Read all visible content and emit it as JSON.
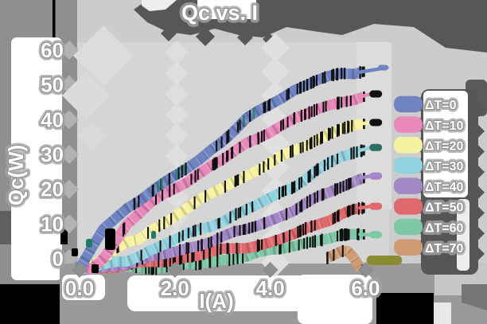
{
  "title": "Qc vs. I",
  "axes": {
    "xlabel": "I(A)",
    "ylabel": "Qc(W)",
    "x_ticks": [
      "0.0",
      "2.0",
      "4.0",
      "6.0"
    ],
    "x_tick_values": [
      0.0,
      2.0,
      4.0,
      6.0
    ],
    "y_ticks": [
      "0",
      "10",
      "20",
      "30",
      "40",
      "50",
      "60"
    ],
    "y_tick_values": [
      0,
      10,
      20,
      30,
      40,
      50,
      60
    ],
    "xlim": [
      0.0,
      6.5
    ],
    "ylim": [
      -1.5,
      62
    ]
  },
  "legend": {
    "position": "right",
    "entries": [
      {
        "label": "ΔT=0",
        "color": "#6f83c2"
      },
      {
        "label": "ΔT=10",
        "color": "#e888bb"
      },
      {
        "label": "ΔT=20",
        "color": "#f6f2a2"
      },
      {
        "label": "ΔT=30",
        "color": "#90d2e0"
      },
      {
        "label": "ΔT=40",
        "color": "#a387c6"
      },
      {
        "label": "ΔT=50",
        "color": "#df696d"
      },
      {
        "label": "ΔT=60",
        "color": "#7fc8a7"
      },
      {
        "label": "ΔT=70",
        "color": "#cf9b74"
      }
    ]
  },
  "colors": {
    "figure_bg": "#cccccc",
    "plot_bg": "#d5d5d5",
    "gray_medium": "#8f8f8f",
    "gray_dark": "#575757",
    "black": "#000000",
    "white": "#ffffff",
    "halo": "#9a9a9a",
    "olive_blob": "#8b8b33",
    "teal_blob": "#1f7a6b"
  },
  "chart_data": {
    "type": "line",
    "title": "Qc vs. I",
    "xlabel": "I(A)",
    "ylabel": "Qc(W)",
    "xlim": [
      0.0,
      6.5
    ],
    "ylim": [
      -1.5,
      62
    ],
    "grid": false,
    "legend_position": "right",
    "series": [
      {
        "name": "ΔT=0",
        "color": "#6f83c2",
        "cap_color": "#6f83c2",
        "cap_q": 55.2,
        "points": [
          [
            0.0,
            -2.8
          ],
          [
            0.25,
            3.0
          ],
          [
            0.5,
            8.56
          ],
          [
            0.75,
            11.57
          ],
          [
            1.0,
            14.51
          ],
          [
            1.25,
            16.61
          ],
          [
            1.5,
            19.2
          ],
          [
            1.75,
            21.82
          ],
          [
            2.0,
            23.91
          ],
          [
            2.25,
            25.97
          ],
          [
            2.5,
            28.38
          ],
          [
            2.75,
            31.18
          ],
          [
            3.0,
            33.7
          ],
          [
            3.25,
            36.84
          ],
          [
            3.5,
            40.41
          ],
          [
            3.75,
            42.65
          ],
          [
            4.0,
            44.33
          ],
          [
            4.25,
            46.22
          ],
          [
            4.5,
            48.43
          ],
          [
            4.75,
            49.87
          ],
          [
            5.0,
            51.48
          ],
          [
            5.25,
            52.67
          ],
          [
            5.5,
            53.31
          ],
          [
            5.75,
            53.14
          ],
          [
            5.95,
            53.8
          ]
        ]
      },
      {
        "name": "ΔT=10",
        "color": "#e888bb",
        "cap_color": "#111111",
        "cap_q": 47.4,
        "points": [
          [
            0.0,
            -2.0
          ],
          [
            0.25,
            -3.0
          ],
          [
            0.5,
            0.03
          ],
          [
            0.75,
            4.87
          ],
          [
            1.0,
            9.97
          ],
          [
            1.25,
            12.93
          ],
          [
            1.5,
            16.27
          ],
          [
            1.75,
            18.56
          ],
          [
            2.0,
            20.16
          ],
          [
            2.25,
            21.92
          ],
          [
            2.5,
            24.4
          ],
          [
            2.75,
            26.65
          ],
          [
            3.0,
            28.56
          ],
          [
            3.25,
            30.97
          ],
          [
            3.5,
            33.27
          ],
          [
            3.75,
            34.65
          ],
          [
            4.0,
            36.3
          ],
          [
            4.25,
            38.41
          ],
          [
            4.5,
            40.33
          ],
          [
            4.75,
            41.62
          ],
          [
            5.0,
            43.08
          ],
          [
            5.25,
            44.25
          ],
          [
            5.5,
            45.0
          ],
          [
            5.75,
            45.59
          ],
          [
            5.95,
            46.6
          ]
        ]
      },
      {
        "name": "ΔT=20",
        "color": "#f6f2a2",
        "cap_color": "#111111",
        "cap_q": 39.2,
        "points": [
          [
            0.0,
            -3.2
          ],
          [
            0.25,
            -1.83
          ],
          [
            0.5,
            -0.18
          ],
          [
            0.75,
            2.85
          ],
          [
            1.0,
            4.84
          ],
          [
            1.25,
            5.61
          ],
          [
            1.5,
            8.07
          ],
          [
            1.75,
            10.11
          ],
          [
            2.0,
            12.06
          ],
          [
            2.25,
            14.44
          ],
          [
            2.5,
            16.97
          ],
          [
            2.75,
            18.75
          ],
          [
            3.0,
            20.35
          ],
          [
            3.25,
            22.16
          ],
          [
            3.5,
            23.87
          ],
          [
            3.75,
            25.45
          ],
          [
            4.0,
            27.57
          ],
          [
            4.25,
            29.76
          ],
          [
            4.5,
            31.18
          ],
          [
            4.75,
            32.44
          ],
          [
            5.0,
            34.3
          ],
          [
            5.25,
            35.95
          ],
          [
            5.5,
            37.38
          ],
          [
            5.75,
            38.37
          ],
          [
            5.95,
            38.8
          ]
        ]
      },
      {
        "name": "ΔT=30",
        "color": "#90d2e0",
        "cap_color": "#2a6f62",
        "cap_q": 32.0,
        "points": [
          [
            0.0,
            -3.0
          ],
          [
            0.25,
            -2.5
          ],
          [
            0.5,
            -1.57
          ],
          [
            0.75,
            -0.89
          ],
          [
            1.0,
            -0.75
          ],
          [
            1.25,
            0.66
          ],
          [
            1.5,
            2.46
          ],
          [
            1.75,
            3.96
          ],
          [
            2.0,
            5.53
          ],
          [
            2.25,
            7.24
          ],
          [
            2.5,
            8.44
          ],
          [
            2.75,
            9.23
          ],
          [
            3.0,
            10.61
          ],
          [
            3.25,
            12.58
          ],
          [
            3.5,
            14.15
          ],
          [
            3.75,
            15.73
          ],
          [
            4.0,
            17.57
          ],
          [
            4.25,
            19.25
          ],
          [
            4.5,
            20.56
          ],
          [
            4.75,
            22.89
          ],
          [
            5.0,
            25.73
          ],
          [
            5.25,
            27.7
          ],
          [
            5.5,
            29.35
          ],
          [
            5.75,
            30.45
          ],
          [
            5.95,
            31.2
          ]
        ]
      },
      {
        "name": "ΔT=40",
        "color": "#a387c6",
        "cap_color": "#a387c6",
        "cap_q": 23.8,
        "points": [
          [
            0.0,
            -3.5
          ],
          [
            0.25,
            -3.0
          ],
          [
            0.5,
            -2.32
          ],
          [
            0.75,
            -2.14
          ],
          [
            1.0,
            -1.67
          ],
          [
            1.25,
            -0.32
          ],
          [
            1.5,
            0.8
          ],
          [
            1.75,
            1.31
          ],
          [
            2.0,
            2.0
          ],
          [
            2.25,
            3.03
          ],
          [
            2.5,
            3.71
          ],
          [
            2.75,
            4.73
          ],
          [
            3.0,
            6.41
          ],
          [
            3.25,
            7.83
          ],
          [
            3.5,
            8.55
          ],
          [
            3.75,
            9.56
          ],
          [
            4.0,
            10.92
          ],
          [
            4.25,
            12.29
          ],
          [
            4.5,
            13.79
          ],
          [
            4.75,
            16.05
          ],
          [
            5.0,
            17.98
          ],
          [
            5.25,
            19.18
          ],
          [
            5.5,
            20.64
          ],
          [
            5.75,
            22.12
          ],
          [
            5.95,
            23.2
          ]
        ]
      },
      {
        "name": "ΔT=50",
        "color": "#df696d",
        "cap_color": "#df696d",
        "cap_q": 15.1,
        "points": [
          [
            0.0,
            -3.0
          ],
          [
            0.25,
            -2.8
          ],
          [
            0.5,
            -2.7
          ],
          [
            0.75,
            -2.51
          ],
          [
            1.0,
            -1.88
          ],
          [
            1.25,
            -1.0
          ],
          [
            1.5,
            -0.88
          ],
          [
            1.75,
            -0.99
          ],
          [
            2.0,
            -0.42
          ],
          [
            2.25,
            0.42
          ],
          [
            2.5,
            0.97
          ],
          [
            2.75,
            1.92
          ],
          [
            3.0,
            2.92
          ],
          [
            3.25,
            2.99
          ],
          [
            3.5,
            3.01
          ],
          [
            3.75,
            3.79
          ],
          [
            4.0,
            4.69
          ],
          [
            4.25,
            5.87
          ],
          [
            4.5,
            7.13
          ],
          [
            4.75,
            8.76
          ],
          [
            5.0,
            9.87
          ],
          [
            5.25,
            10.98
          ],
          [
            5.5,
            12.88
          ],
          [
            5.75,
            14.25
          ],
          [
            5.95,
            14.6
          ]
        ]
      },
      {
        "name": "ΔT=60",
        "color": "#7fc8a7",
        "cap_color": "#7fc8a7",
        "cap_q": 6.9,
        "points": [
          [
            0.0,
            -2.0
          ],
          [
            0.25,
            -2.1
          ],
          [
            0.5,
            -1.97
          ],
          [
            0.75,
            -2.27
          ],
          [
            1.0,
            -2.31
          ],
          [
            1.25,
            -2.47
          ],
          [
            1.5,
            -2.95
          ],
          [
            1.75,
            -2.65
          ],
          [
            2.0,
            -1.9
          ],
          [
            2.25,
            -1.51
          ],
          [
            2.5,
            -1.5
          ],
          [
            2.75,
            -0.9
          ],
          [
            3.0,
            -0.37
          ],
          [
            3.25,
            -0.14
          ],
          [
            3.5,
            0.62
          ],
          [
            3.75,
            1.92
          ],
          [
            4.0,
            2.56
          ],
          [
            4.25,
            2.87
          ],
          [
            4.5,
            3.62
          ],
          [
            4.75,
            4.51
          ],
          [
            5.0,
            5.15
          ],
          [
            5.25,
            5.86
          ],
          [
            5.5,
            6.87
          ],
          [
            5.75,
            7.04
          ],
          [
            5.95,
            7.0
          ]
        ]
      },
      {
        "name": "ΔT=70",
        "color": "#cf9b74",
        "cap_color": "#cf9b74",
        "cap_q": -0.6,
        "points": [
          [
            5.2,
            0.2
          ],
          [
            5.35,
            1.2
          ],
          [
            5.5,
            2.2
          ],
          [
            5.62,
            2.2
          ],
          [
            5.72,
            0.8
          ],
          [
            5.84,
            -1.6
          ],
          [
            5.92,
            -3.2
          ]
        ]
      }
    ]
  }
}
